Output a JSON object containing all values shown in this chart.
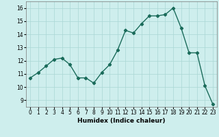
{
  "x": [
    0,
    1,
    2,
    3,
    4,
    5,
    6,
    7,
    8,
    9,
    10,
    11,
    12,
    13,
    14,
    15,
    16,
    17,
    18,
    19,
    20,
    21,
    22,
    23
  ],
  "y": [
    10.7,
    11.1,
    11.6,
    12.1,
    12.2,
    11.7,
    10.7,
    10.7,
    10.3,
    11.1,
    11.7,
    12.8,
    14.3,
    14.1,
    14.8,
    15.4,
    15.4,
    15.5,
    16.0,
    14.5,
    12.6,
    12.6,
    10.1,
    8.7
  ],
  "line_color": "#1a6b5a",
  "marker": "D",
  "marker_size": 2.2,
  "linewidth": 1.0,
  "xlabel": "Humidex (Indice chaleur)",
  "xlim": [
    -0.5,
    23.5
  ],
  "ylim": [
    8.5,
    16.5
  ],
  "yticks": [
    9,
    10,
    11,
    12,
    13,
    14,
    15,
    16
  ],
  "xticks": [
    0,
    1,
    2,
    3,
    4,
    5,
    6,
    7,
    8,
    9,
    10,
    11,
    12,
    13,
    14,
    15,
    16,
    17,
    18,
    19,
    20,
    21,
    22,
    23
  ],
  "bg_color": "#ceeeed",
  "grid_color": "#aad6d4",
  "xlabel_fontsize": 6.5,
  "tick_fontsize": 5.5
}
